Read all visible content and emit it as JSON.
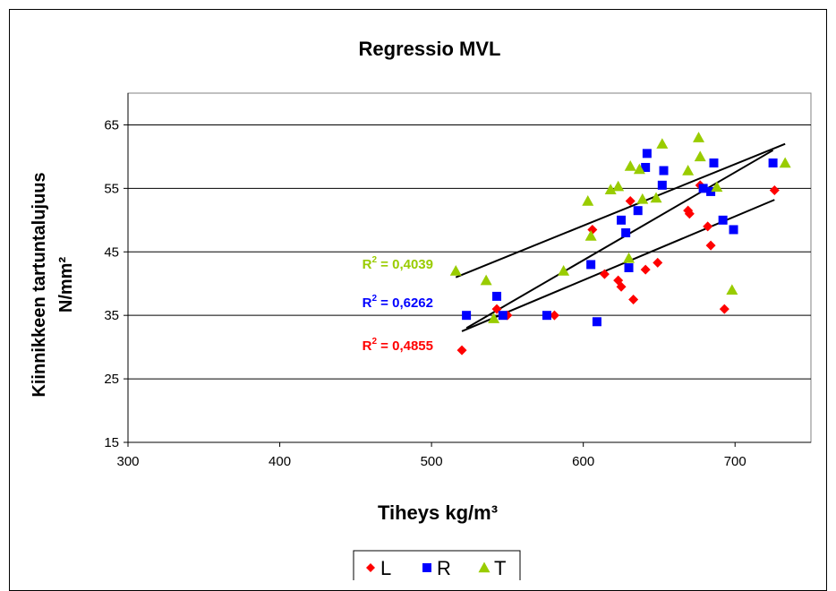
{
  "chart_data": {
    "type": "scatter",
    "title": "Regressio MVL",
    "xlabel": "Tiheys kg/m³",
    "ylabel_line1": "Kiinnikkeen tartuntalujuus",
    "ylabel_line2": "N/mm²",
    "xlim": [
      300,
      750
    ],
    "ylim": [
      15,
      70
    ],
    "xticks": [
      300,
      400,
      500,
      600,
      700
    ],
    "yticks": [
      15,
      25,
      35,
      45,
      55,
      65
    ],
    "grid": "horizontal",
    "legend_position": "bottom",
    "series": [
      {
        "name": "L",
        "marker": "diamond",
        "color": "#ff0000",
        "points": [
          [
            520,
            29.5
          ],
          [
            543,
            36
          ],
          [
            550,
            35
          ],
          [
            581,
            35
          ],
          [
            606,
            48.5
          ],
          [
            614,
            41.5
          ],
          [
            623,
            40.5
          ],
          [
            625,
            39.5
          ],
          [
            631,
            53
          ],
          [
            633,
            37.5
          ],
          [
            641,
            42.2
          ],
          [
            649,
            43.3
          ],
          [
            669,
            51.5
          ],
          [
            670,
            51
          ],
          [
            677,
            55.5
          ],
          [
            682,
            49
          ],
          [
            684,
            46
          ],
          [
            693,
            36
          ],
          [
            726,
            54.7
          ]
        ],
        "trendline": [
          [
            520,
            32.5
          ],
          [
            726,
            53.2
          ]
        ],
        "r2_label": "R",
        "r2_sup": "2",
        "r2_value": " = 0,4855"
      },
      {
        "name": "R",
        "marker": "square",
        "color": "#0000ff",
        "points": [
          [
            523,
            35
          ],
          [
            543,
            38
          ],
          [
            547,
            35
          ],
          [
            576,
            35
          ],
          [
            605,
            43
          ],
          [
            609,
            34
          ],
          [
            625,
            50
          ],
          [
            628,
            48
          ],
          [
            630,
            42.5
          ],
          [
            636,
            51.5
          ],
          [
            641,
            58.3
          ],
          [
            642,
            60.5
          ],
          [
            652,
            55.5
          ],
          [
            653,
            57.8
          ],
          [
            679,
            55
          ],
          [
            684,
            54.5
          ],
          [
            686,
            59
          ],
          [
            692,
            50
          ],
          [
            699,
            48.5
          ],
          [
            725,
            59
          ]
        ],
        "trendline": [
          [
            523,
            33
          ],
          [
            725,
            61
          ]
        ],
        "r2_label": "R",
        "r2_sup": "2",
        "r2_value": " = 0,6262"
      },
      {
        "name": "T",
        "marker": "triangle",
        "color": "#99cc00",
        "points": [
          [
            516,
            42
          ],
          [
            536,
            40.5
          ],
          [
            541,
            34.5
          ],
          [
            587,
            42
          ],
          [
            603,
            53
          ],
          [
            605,
            47.5
          ],
          [
            618,
            54.8
          ],
          [
            623,
            55.3
          ],
          [
            630,
            44
          ],
          [
            631,
            58.5
          ],
          [
            637,
            58
          ],
          [
            639,
            53.3
          ],
          [
            648,
            53.5
          ],
          [
            652,
            62
          ],
          [
            669,
            57.8
          ],
          [
            676,
            63
          ],
          [
            677,
            60
          ],
          [
            688,
            55.2
          ],
          [
            698,
            39
          ],
          [
            733,
            59
          ]
        ],
        "trendline": [
          [
            516,
            41
          ],
          [
            733,
            62
          ]
        ],
        "r2_label": "R",
        "r2_sup": "2",
        "r2_value": " = 0,4039"
      }
    ]
  }
}
